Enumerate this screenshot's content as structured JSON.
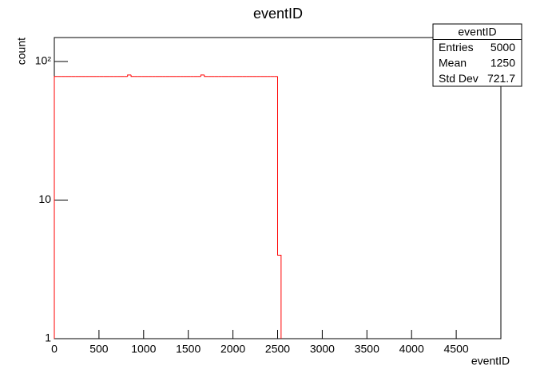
{
  "chart_data": {
    "type": "histogram",
    "title": "eventID",
    "x_label": "eventID",
    "y_label": "count",
    "bins": [
      0,
      39.0625,
      78.125,
      117.1875,
      156.25,
      195.3125,
      234.375,
      273.4375,
      312.5,
      351.5625,
      390.625,
      429.6875,
      468.75,
      507.8125,
      546.875,
      585.9375,
      625,
      664.0625,
      703.125,
      742.1875,
      781.25,
      820.3125,
      859.375,
      898.4375,
      937.5,
      976.5625,
      1015.625,
      1054.6875,
      1093.75,
      1132.8125,
      1171.875,
      1210.9375,
      1250,
      1289.0625,
      1328.125,
      1367.1875,
      1406.25,
      1445.3125,
      1484.375,
      1523.4375,
      1562.5,
      1601.5625,
      1640.625,
      1679.6875,
      1718.75,
      1757.8125,
      1796.875,
      1835.9375,
      1875,
      1914.0625,
      1953.125,
      1992.1875,
      2031.25,
      2070.3125,
      2109.375,
      2148.4375,
      2187.5,
      2226.5625,
      2265.625,
      2304.6875,
      2343.75,
      2382.8125,
      2421.875,
      2460.9375,
      2500,
      2539.0625
    ],
    "values": [
      78,
      78,
      78,
      78,
      78,
      78,
      78,
      78,
      78,
      78,
      78,
      78,
      78,
      78,
      78,
      78,
      78,
      78,
      78,
      78,
      78,
      80,
      78,
      78,
      78,
      78,
      78,
      78,
      78,
      78,
      78,
      78,
      78,
      78,
      78,
      78,
      78,
      78,
      78,
      78,
      78,
      78,
      80,
      78,
      78,
      78,
      78,
      78,
      78,
      78,
      78,
      78,
      78,
      78,
      78,
      78,
      78,
      78,
      78,
      78,
      78,
      78,
      78,
      78,
      4
    ],
    "color": "#ff0000",
    "log_y": true,
    "xlim": [
      0,
      5000
    ],
    "xticks": [
      0,
      500,
      1000,
      1500,
      2000,
      2500,
      3000,
      3500,
      4000,
      4500
    ],
    "ylim": [
      1,
      149
    ],
    "yticks": [
      1,
      10,
      {
        "value": 100,
        "label": "10²"
      }
    ],
    "stats": {
      "title": "eventID",
      "rows": [
        [
          "Entries",
          5000
        ],
        [
          "Mean",
          1250
        ],
        [
          "Std Dev",
          721.7
        ]
      ]
    }
  }
}
